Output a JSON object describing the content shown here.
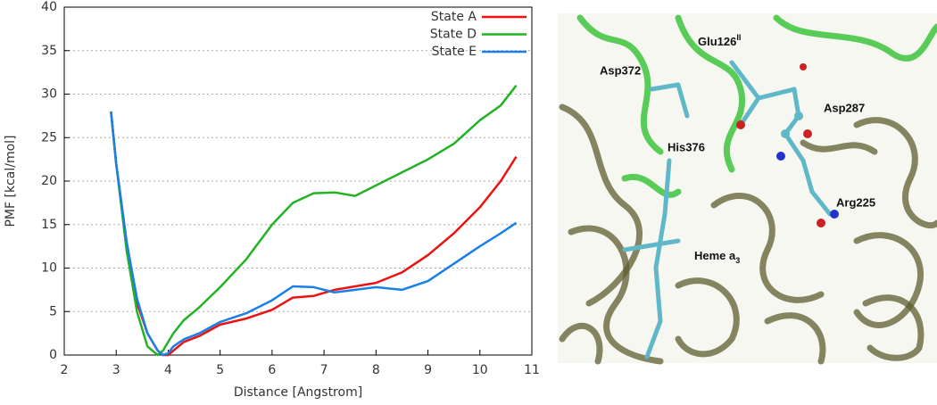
{
  "chart_data": {
    "type": "line",
    "xlabel": "Distance [Angstrom]",
    "ylabel": "PMF [kcal/mol]",
    "x": [
      2.9,
      3.0,
      3.2,
      3.4,
      3.6,
      3.8,
      3.9,
      4.0,
      4.1,
      4.3,
      4.6,
      5.0,
      5.5,
      6.0,
      6.4,
      6.8,
      7.2,
      7.6,
      8.0,
      8.5,
      9.0,
      9.5,
      10.0,
      10.4,
      10.7
    ],
    "series": [
      {
        "name": "State A",
        "color": "#ee1111",
        "values": [
          28,
          22,
          13,
          6,
          2.5,
          0.5,
          0,
          0,
          0.5,
          1.5,
          2.2,
          3.5,
          4.2,
          5.2,
          6.6,
          6.8,
          7.5,
          7.9,
          8.3,
          9.5,
          11.5,
          14,
          17,
          20,
          22.8
        ]
      },
      {
        "name": "State D",
        "color": "#22b322",
        "values": [
          28,
          22,
          12,
          5,
          1,
          0,
          0.5,
          1.5,
          2.5,
          4,
          5.5,
          7.8,
          11,
          15,
          17.5,
          18.6,
          18.7,
          18.3,
          19.5,
          21,
          22.5,
          24.3,
          27,
          28.7,
          31
        ]
      },
      {
        "name": "State E",
        "color": "#1a7fe6",
        "values": [
          28,
          22,
          13,
          6.5,
          2.5,
          0.5,
          0,
          0.2,
          1,
          1.8,
          2.5,
          3.8,
          4.8,
          6.3,
          7.9,
          7.8,
          7.2,
          7.5,
          7.8,
          7.5,
          8.5,
          10.5,
          12.5,
          14,
          15.2
        ]
      }
    ],
    "xlim": [
      2,
      11
    ],
    "xticks": [
      2,
      3,
      4,
      5,
      6,
      7,
      8,
      9,
      10,
      11
    ],
    "ylim": [
      0,
      40
    ],
    "yticks": [
      0,
      5,
      10,
      15,
      20,
      25,
      30,
      35,
      40
    ],
    "grid": true,
    "legend": "top-right"
  },
  "structure_labels": [
    {
      "text": "Glu126",
      "sup": "II"
    },
    {
      "text": "Asp372"
    },
    {
      "text": "Asp287"
    },
    {
      "text": "His376"
    },
    {
      "text": "Arg225"
    },
    {
      "text": "Heme a",
      "sub": "3"
    }
  ]
}
